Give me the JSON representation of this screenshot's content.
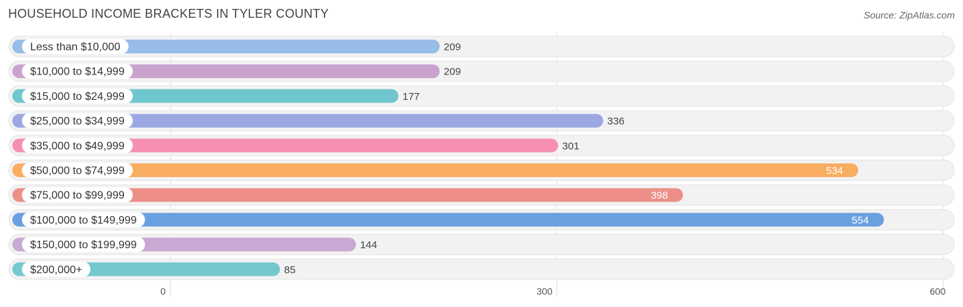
{
  "title": "HOUSEHOLD INCOME BRACKETS IN TYLER COUNTY",
  "source": "Source: ZipAtlas.com",
  "chart_data": {
    "type": "bar",
    "orientation": "horizontal",
    "title": "HOUSEHOLD INCOME BRACKETS IN TYLER COUNTY",
    "xlim": [
      0,
      600
    ],
    "ticks": [
      0,
      300,
      600
    ],
    "tick_labels": [
      "0",
      "300",
      "600"
    ],
    "grid": true,
    "categories": [
      "Less than $10,000",
      "$10,000 to $14,999",
      "$15,000 to $24,999",
      "$25,000 to $34,999",
      "$35,000 to $49,999",
      "$50,000 to $74,999",
      "$75,000 to $99,999",
      "$100,000 to $149,999",
      "$150,000 to $199,999",
      "$200,000+"
    ],
    "values": [
      209,
      209,
      177,
      336,
      301,
      534,
      398,
      554,
      144,
      85
    ],
    "value_labels": [
      "209",
      "209",
      "177",
      "336",
      "301",
      "534",
      "398",
      "554",
      "144",
      "85"
    ],
    "colors": [
      "#97bde8",
      "#c9a3ce",
      "#6fc7cd",
      "#9da8e3",
      "#f68fb1",
      "#f8ad61",
      "#ed8f88",
      "#6aa0df",
      "#c9a9d3",
      "#76c8cf"
    ]
  }
}
